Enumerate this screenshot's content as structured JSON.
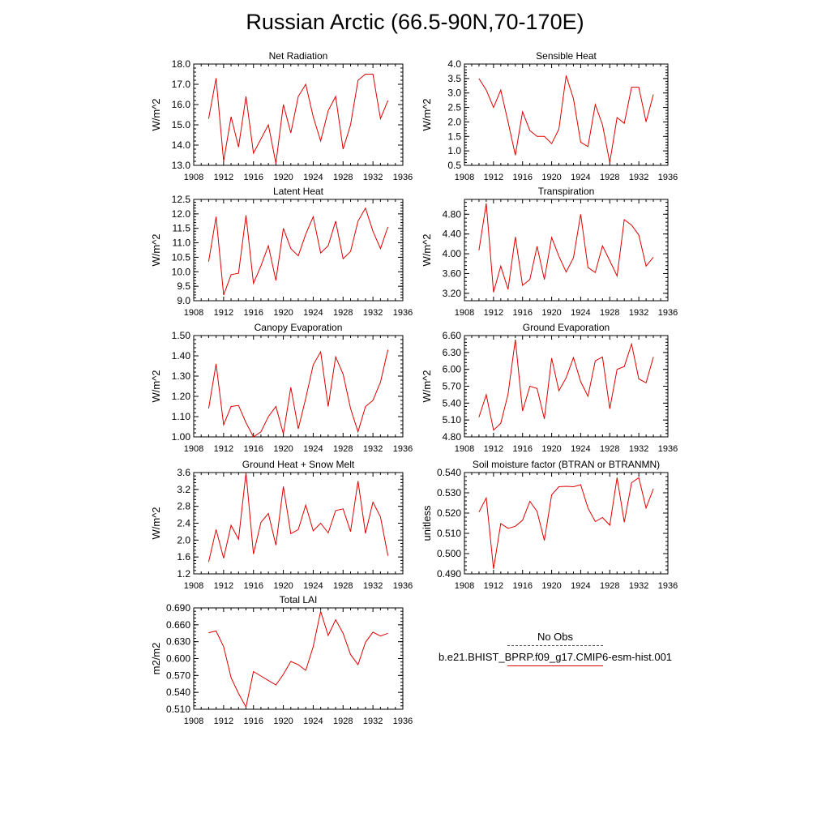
{
  "title": "Russian Arctic (66.5-90N,70-170E)",
  "legend": {
    "obs_label": "No Obs",
    "model_label": "b.e21.BHIST_BPRP.f09_g17.CMIP6-esm-hist.001",
    "obs_color": "#555555",
    "model_color": "#dd0000"
  },
  "chart_data": [
    {
      "type": "line",
      "title": "Net Radiation",
      "ylabel": "W/m^2",
      "xlim": [
        1908,
        1936
      ],
      "xticks": [
        "1908",
        "1912",
        "1916",
        "1920",
        "1924",
        "1928",
        "1932",
        "1936"
      ],
      "ylim": [
        13.0,
        18.0
      ],
      "yticks": [
        "13.0",
        "14.0",
        "15.0",
        "16.0",
        "17.0",
        "18.0"
      ],
      "yminor": 0.2,
      "x": [
        1910,
        1911,
        1912,
        1913,
        1914,
        1915,
        1916,
        1917,
        1918,
        1919,
        1920,
        1921,
        1922,
        1923,
        1924,
        1925,
        1926,
        1927,
        1928,
        1929,
        1930,
        1931,
        1932,
        1933,
        1934
      ],
      "series": [
        {
          "color": "#dd0000",
          "values": [
            15.3,
            17.3,
            13.2,
            15.4,
            13.9,
            16.4,
            13.6,
            14.3,
            15.0,
            13.1,
            16.0,
            14.6,
            16.4,
            17.0,
            15.4,
            14.2,
            15.7,
            16.4,
            13.8,
            15.0,
            17.2,
            17.5,
            17.5,
            15.3,
            16.2
          ]
        }
      ]
    },
    {
      "type": "line",
      "title": "Sensible Heat",
      "ylabel": "W/m^2",
      "xlim": [
        1908,
        1936
      ],
      "xticks": [
        "1908",
        "1912",
        "1916",
        "1920",
        "1924",
        "1928",
        "1932",
        "1936"
      ],
      "ylim": [
        0.5,
        4.0
      ],
      "yticks": [
        "0.5",
        "1.0",
        "1.5",
        "2.0",
        "2.5",
        "3.0",
        "3.5",
        "4.0"
      ],
      "yminor": 0.1,
      "x": [
        1910,
        1911,
        1912,
        1913,
        1914,
        1915,
        1916,
        1917,
        1918,
        1919,
        1920,
        1921,
        1922,
        1923,
        1924,
        1925,
        1926,
        1927,
        1928,
        1929,
        1930,
        1931,
        1932,
        1933,
        1934
      ],
      "series": [
        {
          "color": "#dd0000",
          "values": [
            3.5,
            3.1,
            2.5,
            3.1,
            2.0,
            0.85,
            2.35,
            1.7,
            1.5,
            1.5,
            1.25,
            1.75,
            3.6,
            2.8,
            1.3,
            1.15,
            2.6,
            1.9,
            0.6,
            2.15,
            1.95,
            3.2,
            3.2,
            2.0,
            2.95
          ]
        }
      ]
    },
    {
      "type": "line",
      "title": "Latent Heat",
      "ylabel": "W/m^2",
      "xlim": [
        1908,
        1936
      ],
      "xticks": [
        "1908",
        "1912",
        "1916",
        "1920",
        "1924",
        "1928",
        "1932",
        "1936"
      ],
      "ylim": [
        9.0,
        12.5
      ],
      "yticks": [
        "9.0",
        "9.5",
        "10.0",
        "10.5",
        "11.0",
        "11.5",
        "12.0",
        "12.5"
      ],
      "yminor": 0.1,
      "x": [
        1910,
        1911,
        1912,
        1913,
        1914,
        1915,
        1916,
        1917,
        1918,
        1919,
        1920,
        1921,
        1922,
        1923,
        1924,
        1925,
        1926,
        1927,
        1928,
        1929,
        1930,
        1931,
        1932,
        1933,
        1934
      ],
      "series": [
        {
          "color": "#dd0000",
          "values": [
            10.35,
            11.9,
            9.2,
            9.9,
            9.95,
            11.95,
            9.6,
            10.2,
            10.9,
            9.7,
            11.5,
            10.8,
            10.55,
            11.3,
            11.9,
            10.65,
            10.9,
            11.75,
            10.45,
            10.7,
            11.75,
            12.2,
            11.4,
            10.8,
            11.55
          ]
        }
      ]
    },
    {
      "type": "line",
      "title": "Transpiration",
      "ylabel": "W/m^2",
      "xlim": [
        1908,
        1936
      ],
      "xticks": [
        "1908",
        "1912",
        "1916",
        "1920",
        "1924",
        "1928",
        "1932",
        "1936"
      ],
      "ylim": [
        3.05,
        5.1
      ],
      "yticks": [
        "3.20",
        "3.60",
        "4.00",
        "4.40",
        "4.80"
      ],
      "ytickvals": [
        3.2,
        3.6,
        4.0,
        4.4,
        4.8
      ],
      "yminor": 0.08,
      "x": [
        1910,
        1911,
        1912,
        1913,
        1914,
        1915,
        1916,
        1917,
        1918,
        1919,
        1920,
        1921,
        1922,
        1923,
        1924,
        1925,
        1926,
        1927,
        1928,
        1929,
        1930,
        1931,
        1932,
        1933,
        1934
      ],
      "series": [
        {
          "color": "#dd0000",
          "values": [
            4.07,
            5.02,
            3.22,
            3.75,
            3.28,
            4.34,
            3.36,
            3.48,
            4.15,
            3.48,
            4.33,
            3.95,
            3.63,
            3.92,
            4.8,
            3.72,
            3.62,
            4.16,
            3.86,
            3.55,
            4.69,
            4.58,
            4.38,
            3.75,
            3.93
          ]
        }
      ]
    },
    {
      "type": "line",
      "title": "Canopy Evaporation",
      "ylabel": "W/m^2",
      "xlim": [
        1908,
        1936
      ],
      "xticks": [
        "1908",
        "1912",
        "1916",
        "1920",
        "1924",
        "1928",
        "1932",
        "1936"
      ],
      "ylim": [
        1.0,
        1.5
      ],
      "yticks": [
        "1.00",
        "1.10",
        "1.20",
        "1.30",
        "1.40",
        "1.50"
      ],
      "yminor": 0.02,
      "x": [
        1910,
        1911,
        1912,
        1913,
        1914,
        1915,
        1916,
        1917,
        1918,
        1919,
        1920,
        1921,
        1922,
        1923,
        1924,
        1925,
        1926,
        1927,
        1928,
        1929,
        1930,
        1931,
        1932,
        1933,
        1934
      ],
      "series": [
        {
          "color": "#dd0000",
          "values": [
            1.14,
            1.36,
            1.06,
            1.15,
            1.155,
            1.07,
            1.0,
            1.025,
            1.1,
            1.15,
            1.015,
            1.245,
            1.04,
            1.19,
            1.355,
            1.42,
            1.15,
            1.395,
            1.31,
            1.14,
            1.025,
            1.15,
            1.18,
            1.27,
            1.43
          ]
        }
      ]
    },
    {
      "type": "line",
      "title": "Ground Evaporation",
      "ylabel": "W/m^2",
      "xlim": [
        1908,
        1936
      ],
      "xticks": [
        "1908",
        "1912",
        "1916",
        "1920",
        "1924",
        "1928",
        "1932",
        "1936"
      ],
      "ylim": [
        4.8,
        6.6
      ],
      "yticks": [
        "4.80",
        "5.10",
        "5.40",
        "5.70",
        "6.00",
        "6.30",
        "6.60"
      ],
      "yminor": 0.06,
      "x": [
        1910,
        1911,
        1912,
        1913,
        1914,
        1915,
        1916,
        1917,
        1918,
        1919,
        1920,
        1921,
        1922,
        1923,
        1924,
        1925,
        1926,
        1927,
        1928,
        1929,
        1930,
        1931,
        1932,
        1933,
        1934
      ],
      "series": [
        {
          "color": "#dd0000",
          "values": [
            5.15,
            5.55,
            4.92,
            5.04,
            5.56,
            6.53,
            5.26,
            5.7,
            5.66,
            5.12,
            6.2,
            5.62,
            5.85,
            6.21,
            5.78,
            5.52,
            6.15,
            6.22,
            5.3,
            6.0,
            6.05,
            6.45,
            5.83,
            5.76,
            6.22
          ]
        }
      ]
    },
    {
      "type": "line",
      "title": "Ground Heat + Snow Melt",
      "ylabel": "W/m^2",
      "xlim": [
        1908,
        1936
      ],
      "xticks": [
        "1908",
        "1912",
        "1916",
        "1920",
        "1924",
        "1928",
        "1932",
        "1936"
      ],
      "ylim": [
        1.2,
        3.6
      ],
      "yticks": [
        "1.2",
        "1.6",
        "2.0",
        "2.4",
        "2.8",
        "3.2",
        "3.6"
      ],
      "yminor": 0.08,
      "x": [
        1910,
        1911,
        1912,
        1913,
        1914,
        1915,
        1916,
        1917,
        1918,
        1919,
        1920,
        1921,
        1922,
        1923,
        1924,
        1925,
        1926,
        1927,
        1928,
        1929,
        1930,
        1931,
        1932,
        1933,
        1934
      ],
      "series": [
        {
          "color": "#dd0000",
          "values": [
            1.48,
            2.25,
            1.57,
            2.35,
            2.02,
            3.6,
            1.67,
            2.42,
            2.63,
            1.88,
            3.27,
            2.15,
            2.25,
            2.83,
            2.22,
            2.4,
            2.17,
            2.7,
            2.74,
            2.2,
            3.4,
            2.16,
            2.9,
            2.55,
            1.63
          ]
        }
      ]
    },
    {
      "type": "line",
      "title": "Soil moisture factor (BTRAN or BTRANMN)",
      "ylabel": "unitless",
      "xlim": [
        1908,
        1936
      ],
      "xticks": [
        "1908",
        "1912",
        "1916",
        "1920",
        "1924",
        "1928",
        "1932",
        "1936"
      ],
      "ylim": [
        0.49,
        0.54
      ],
      "yticks": [
        "0.490",
        "0.500",
        "0.510",
        "0.520",
        "0.530",
        "0.540"
      ],
      "yminor": 0.002,
      "x": [
        1910,
        1911,
        1912,
        1913,
        1914,
        1915,
        1916,
        1917,
        1918,
        1919,
        1920,
        1921,
        1922,
        1923,
        1924,
        1925,
        1926,
        1927,
        1928,
        1929,
        1930,
        1931,
        1932,
        1933,
        1934
      ],
      "series": [
        {
          "color": "#dd0000",
          "values": [
            0.5205,
            0.5275,
            0.4925,
            0.5148,
            0.5125,
            0.5135,
            0.5165,
            0.5258,
            0.5208,
            0.5065,
            0.529,
            0.533,
            0.5332,
            0.533,
            0.534,
            0.5225,
            0.5158,
            0.5178,
            0.514,
            0.5375,
            0.5155,
            0.535,
            0.5375,
            0.5225,
            0.532
          ]
        }
      ]
    },
    {
      "type": "line",
      "title": "Total LAI",
      "ylabel": "m2/m2",
      "xlim": [
        1908,
        1936
      ],
      "xticks": [
        "1908",
        "1912",
        "1916",
        "1920",
        "1924",
        "1928",
        "1932",
        "1936"
      ],
      "ylim": [
        0.51,
        0.69
      ],
      "yticks": [
        "0.510",
        "0.540",
        "0.570",
        "0.600",
        "0.630",
        "0.660",
        "0.690"
      ],
      "yminor": 0.006,
      "x": [
        1910,
        1911,
        1912,
        1913,
        1914,
        1915,
        1916,
        1917,
        1918,
        1919,
        1920,
        1921,
        1922,
        1923,
        1924,
        1925,
        1926,
        1927,
        1928,
        1929,
        1930,
        1931,
        1932,
        1933,
        1934
      ],
      "series": [
        {
          "color": "#dd0000",
          "values": [
            0.646,
            0.649,
            0.621,
            0.566,
            0.538,
            0.514,
            0.577,
            0.569,
            0.561,
            0.553,
            0.572,
            0.595,
            0.589,
            0.579,
            0.621,
            0.684,
            0.641,
            0.669,
            0.645,
            0.607,
            0.589,
            0.629,
            0.647,
            0.64,
            0.645
          ]
        }
      ]
    }
  ]
}
